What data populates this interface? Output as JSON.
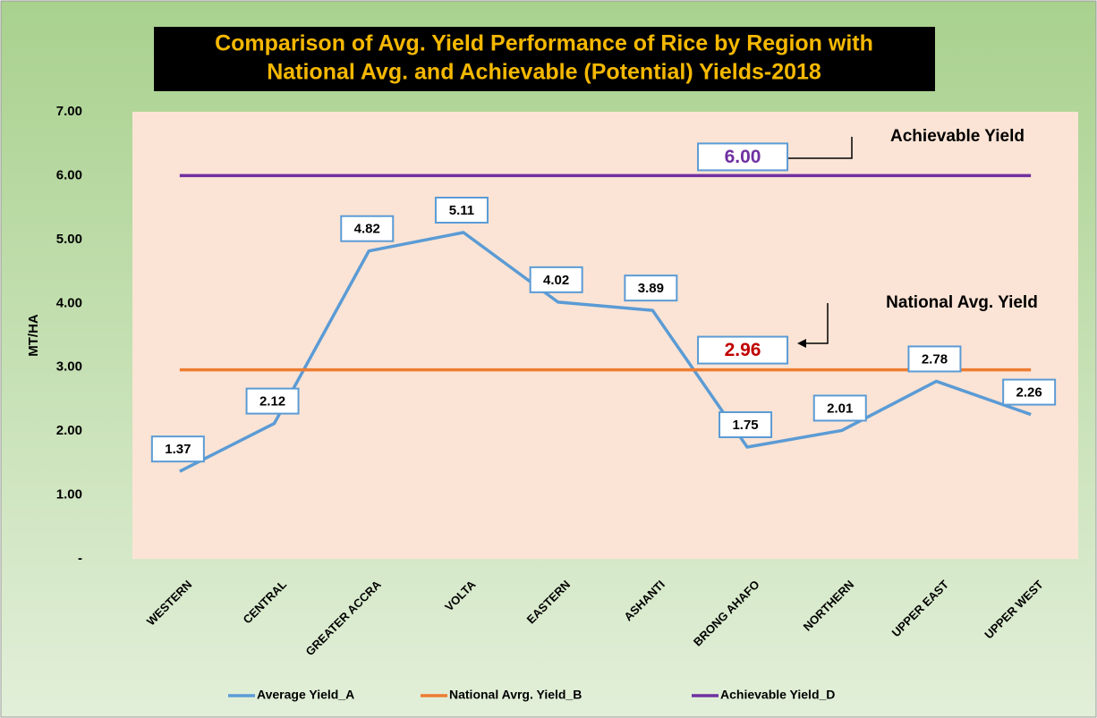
{
  "chart_data": {
    "type": "line",
    "title": [
      "Comparison of Avg. Yield Performance of Rice by Region with",
      "National Avg. and Achievable (Potential) Yields-2018"
    ],
    "y_label": "MT/HA",
    "categories": [
      "WESTERN",
      "CENTRAL",
      "GREATER ACCRA",
      "VOLTA",
      "EASTERN",
      "ASHANTI",
      "BRONG AHAFO",
      "NORTHERN",
      "UPPER EAST",
      "UPPER WEST"
    ],
    "series": [
      {
        "name": "Average Yield_A",
        "color": "#5b9bd5",
        "values": [
          1.37,
          2.12,
          4.82,
          5.11,
          4.02,
          3.89,
          1.75,
          2.01,
          2.78,
          2.26
        ],
        "value_labels": [
          "1.37",
          "2.12",
          "4.82",
          "5.11",
          "4.02",
          "3.89",
          "1.75",
          "2.01",
          "2.78",
          "2.26"
        ],
        "label_color": "#000000"
      },
      {
        "name": "National Avrg. Yield_B",
        "color": "#ed7d31",
        "values": [
          2.96,
          2.96,
          2.96,
          2.96,
          2.96,
          2.96,
          2.96,
          2.96,
          2.96,
          2.96
        ],
        "value_labels": [
          null,
          null,
          null,
          null,
          null,
          null,
          "2.96",
          null,
          null,
          null
        ],
        "label_color": "#c00000"
      },
      {
        "name": "Achievable Yield_D",
        "color": "#7030a0",
        "values": [
          6,
          6,
          6,
          6,
          6,
          6,
          6,
          6,
          6,
          6
        ],
        "value_labels": [
          null,
          null,
          null,
          null,
          null,
          null,
          "6.00",
          null,
          null,
          null
        ],
        "label_color": "#7030a0"
      }
    ],
    "annotations": [
      "Achievable Yield",
      "National Avg. Yield"
    ],
    "ylim": [
      0,
      7
    ],
    "yticks": [
      {
        "value": 0,
        "label": "-"
      },
      {
        "value": 1,
        "label": "1.00"
      },
      {
        "value": 2,
        "label": "2.00"
      },
      {
        "value": 3,
        "label": "3.00"
      },
      {
        "value": 4,
        "label": "4.00"
      },
      {
        "value": 5,
        "label": "5.00"
      },
      {
        "value": 6,
        "label": "6.00"
      },
      {
        "value": 7,
        "label": "7.00"
      }
    ],
    "legend": "bottom"
  }
}
